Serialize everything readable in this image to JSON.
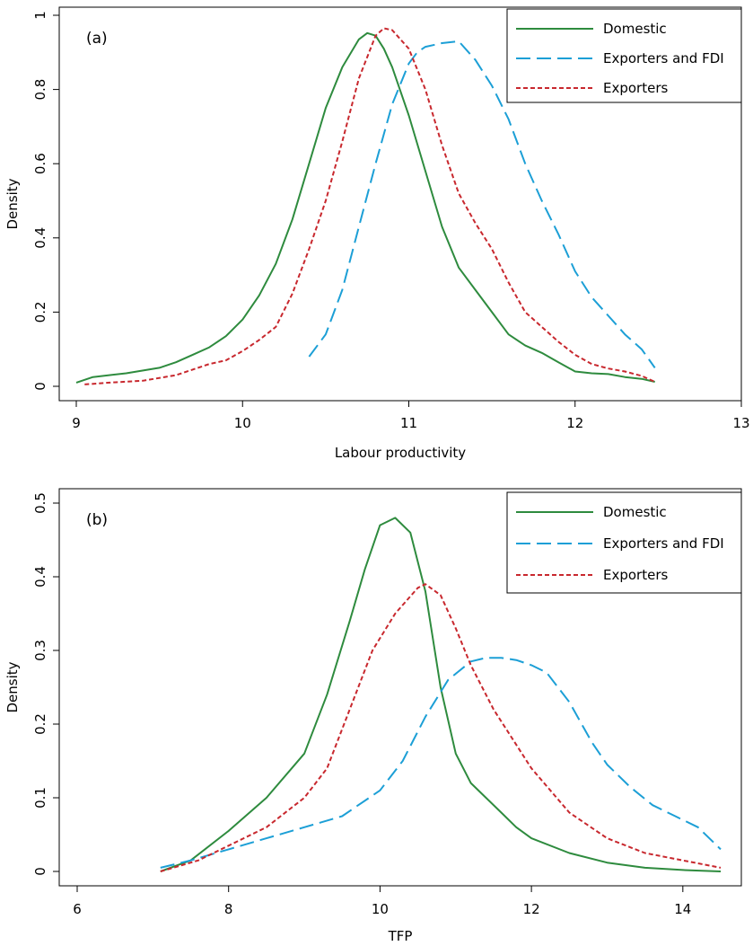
{
  "chart_data": [
    {
      "type": "line",
      "panel_label": "(a)",
      "xlabel": "Labour productivity",
      "ylabel": "Density",
      "xlim": [
        9,
        13
      ],
      "ylim": [
        0,
        1
      ],
      "x_ticks": [
        9,
        10,
        11,
        12,
        13
      ],
      "x_tick_labels": [
        "9",
        "10",
        "11",
        "12",
        "13"
      ],
      "y_ticks": [
        0,
        0.2,
        0.4,
        0.6,
        0.8,
        1
      ],
      "y_tick_labels": [
        "0",
        "0.2",
        "0.4",
        "0.6",
        "0.8",
        "1"
      ],
      "grid": false,
      "legend_position": "top-right",
      "series": [
        {
          "name": "Domestic",
          "color": "#2e8b3e",
          "dash": "solid",
          "x": [
            9.0,
            9.1,
            9.3,
            9.5,
            9.6,
            9.7,
            9.8,
            9.9,
            10.0,
            10.1,
            10.2,
            10.3,
            10.4,
            10.5,
            10.6,
            10.7,
            10.75,
            10.8,
            10.85,
            10.9,
            11.0,
            11.1,
            11.2,
            11.3,
            11.4,
            11.5,
            11.6,
            11.7,
            11.8,
            11.9,
            12.0,
            12.1,
            12.2,
            12.3,
            12.4,
            12.48
          ],
          "y": [
            0.01,
            0.025,
            0.035,
            0.05,
            0.065,
            0.085,
            0.105,
            0.135,
            0.18,
            0.245,
            0.33,
            0.45,
            0.6,
            0.75,
            0.86,
            0.935,
            0.952,
            0.945,
            0.91,
            0.86,
            0.73,
            0.58,
            0.43,
            0.32,
            0.26,
            0.2,
            0.14,
            0.11,
            0.09,
            0.065,
            0.04,
            0.035,
            0.033,
            0.025,
            0.02,
            0.012
          ]
        },
        {
          "name": "Exporters and FDI",
          "color": "#1c9fd6",
          "dash": "long",
          "x": [
            10.4,
            10.5,
            10.6,
            10.7,
            10.8,
            10.9,
            11.0,
            11.05,
            11.1,
            11.2,
            11.3,
            11.4,
            11.5,
            11.6,
            11.7,
            11.8,
            11.9,
            12.0,
            12.1,
            12.2,
            12.3,
            12.4,
            12.48
          ],
          "y": [
            0.08,
            0.14,
            0.26,
            0.43,
            0.6,
            0.76,
            0.87,
            0.9,
            0.915,
            0.925,
            0.93,
            0.88,
            0.81,
            0.72,
            0.6,
            0.5,
            0.41,
            0.31,
            0.24,
            0.19,
            0.14,
            0.1,
            0.05
          ]
        },
        {
          "name": "Exporters",
          "color": "#c8282e",
          "dash": "short",
          "x": [
            9.05,
            9.2,
            9.4,
            9.6,
            9.8,
            9.9,
            10.0,
            10.1,
            10.2,
            10.3,
            10.4,
            10.5,
            10.6,
            10.7,
            10.8,
            10.85,
            10.9,
            11.0,
            11.1,
            11.2,
            11.3,
            11.4,
            11.5,
            11.6,
            11.7,
            11.8,
            11.9,
            12.0,
            12.1,
            12.2,
            12.3,
            12.4,
            12.48
          ],
          "y": [
            0.005,
            0.01,
            0.015,
            0.03,
            0.06,
            0.07,
            0.095,
            0.125,
            0.16,
            0.25,
            0.37,
            0.5,
            0.66,
            0.83,
            0.945,
            0.965,
            0.96,
            0.91,
            0.8,
            0.65,
            0.52,
            0.44,
            0.37,
            0.28,
            0.2,
            0.16,
            0.12,
            0.085,
            0.06,
            0.048,
            0.04,
            0.028,
            0.012
          ]
        }
      ]
    },
    {
      "type": "line",
      "panel_label": "(b)",
      "xlabel": "TFP",
      "ylabel": "Density",
      "xlim": [
        6,
        14.5
      ],
      "ylim": [
        0,
        0.5
      ],
      "x_ticks": [
        6,
        8,
        10,
        12,
        14
      ],
      "x_tick_labels": [
        "6",
        "8",
        "10",
        "12",
        "14"
      ],
      "y_ticks": [
        0,
        0.1,
        0.2,
        0.3,
        0.4,
        0.5
      ],
      "y_tick_labels": [
        "0",
        "0.1",
        "0.2",
        "0.3",
        "0.4",
        "0.5"
      ],
      "grid": false,
      "legend_position": "top-right",
      "series": [
        {
          "name": "Domestic",
          "color": "#2e8b3e",
          "dash": "solid",
          "x": [
            7.1,
            7.5,
            8.0,
            8.5,
            9.0,
            9.3,
            9.6,
            9.8,
            10.0,
            10.2,
            10.4,
            10.6,
            10.8,
            11.0,
            11.2,
            11.4,
            11.6,
            11.8,
            12.0,
            12.5,
            13.0,
            13.5,
            14.0,
            14.5
          ],
          "y": [
            0.0,
            0.015,
            0.055,
            0.1,
            0.16,
            0.24,
            0.34,
            0.41,
            0.47,
            0.48,
            0.46,
            0.38,
            0.25,
            0.16,
            0.12,
            0.1,
            0.08,
            0.06,
            0.045,
            0.025,
            0.012,
            0.005,
            0.002,
            0.0
          ]
        },
        {
          "name": "Exporters and FDI",
          "color": "#1c9fd6",
          "dash": "long",
          "x": [
            7.1,
            7.5,
            8.0,
            8.5,
            9.0,
            9.5,
            10.0,
            10.3,
            10.6,
            10.9,
            11.2,
            11.4,
            11.6,
            11.8,
            12.0,
            12.2,
            12.5,
            12.8,
            13.0,
            13.3,
            13.6,
            13.9,
            14.2,
            14.5
          ],
          "y": [
            0.005,
            0.015,
            0.03,
            0.045,
            0.06,
            0.075,
            0.11,
            0.15,
            0.21,
            0.26,
            0.285,
            0.29,
            0.29,
            0.287,
            0.28,
            0.27,
            0.23,
            0.175,
            0.145,
            0.115,
            0.09,
            0.075,
            0.06,
            0.03
          ]
        },
        {
          "name": "Exporters",
          "color": "#c8282e",
          "dash": "short",
          "x": [
            7.1,
            7.6,
            8.0,
            8.5,
            9.0,
            9.3,
            9.6,
            9.9,
            10.2,
            10.5,
            10.6,
            10.8,
            11.0,
            11.2,
            11.5,
            12.0,
            12.5,
            13.0,
            13.5,
            14.0,
            14.5
          ],
          "y": [
            0.0,
            0.015,
            0.035,
            0.06,
            0.1,
            0.14,
            0.22,
            0.3,
            0.35,
            0.385,
            0.39,
            0.375,
            0.33,
            0.28,
            0.22,
            0.14,
            0.08,
            0.045,
            0.025,
            0.015,
            0.005
          ]
        }
      ]
    }
  ]
}
